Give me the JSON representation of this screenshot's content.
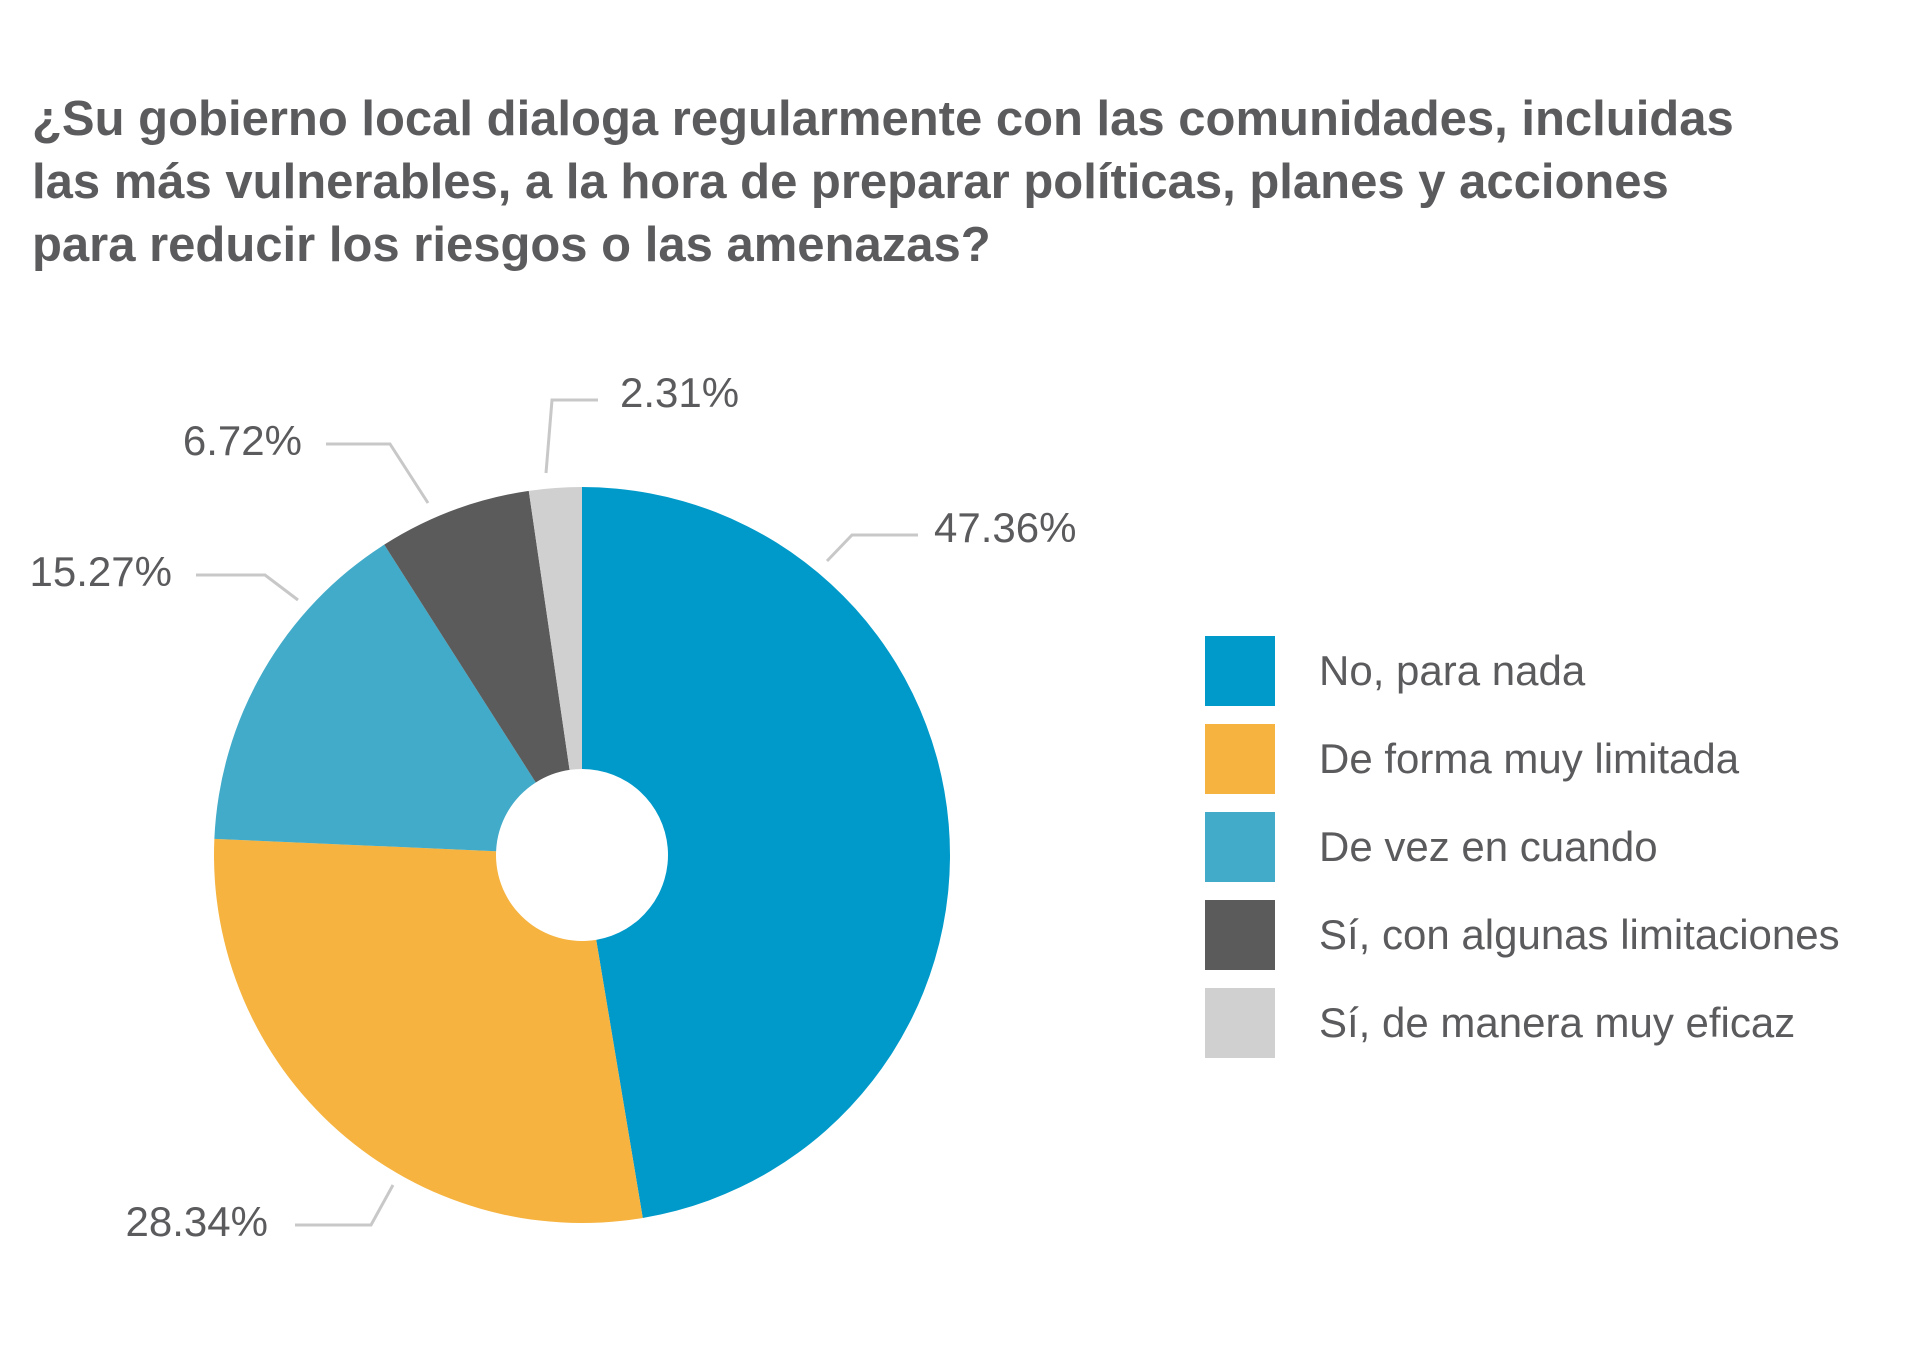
{
  "chart_data": {
    "type": "pie",
    "donut": true,
    "title_lines": [
      "¿Su gobierno local dialoga regularmente con las comunidades, incluidas",
      "las más vulnerables, a la hora de preparar políticas, planes y acciones",
      "para reducir los riesgos o las amenazas?"
    ],
    "slices": [
      {
        "label": "No, para nada",
        "value": 47.36,
        "value_label": "47.36%",
        "color": "#009aca"
      },
      {
        "label": "De forma muy limitada",
        "value": 28.34,
        "value_label": "28.34%",
        "color": "#f6b33f"
      },
      {
        "label": "De vez en cuando",
        "value": 15.27,
        "value_label": "15.27%",
        "color": "#41abc9"
      },
      {
        "label": "Sí, con algunas limitaciones",
        "value": 6.72,
        "value_label": "6.72%",
        "color": "#5b5b5c"
      },
      {
        "label": "Sí, de manera muy eficaz",
        "value": 2.31,
        "value_label": "2.31%",
        "color": "#d0d0d1"
      }
    ],
    "legend_position": "right",
    "leader_line_color": "#c8c8c8",
    "label_color": "#5b5b5e"
  }
}
